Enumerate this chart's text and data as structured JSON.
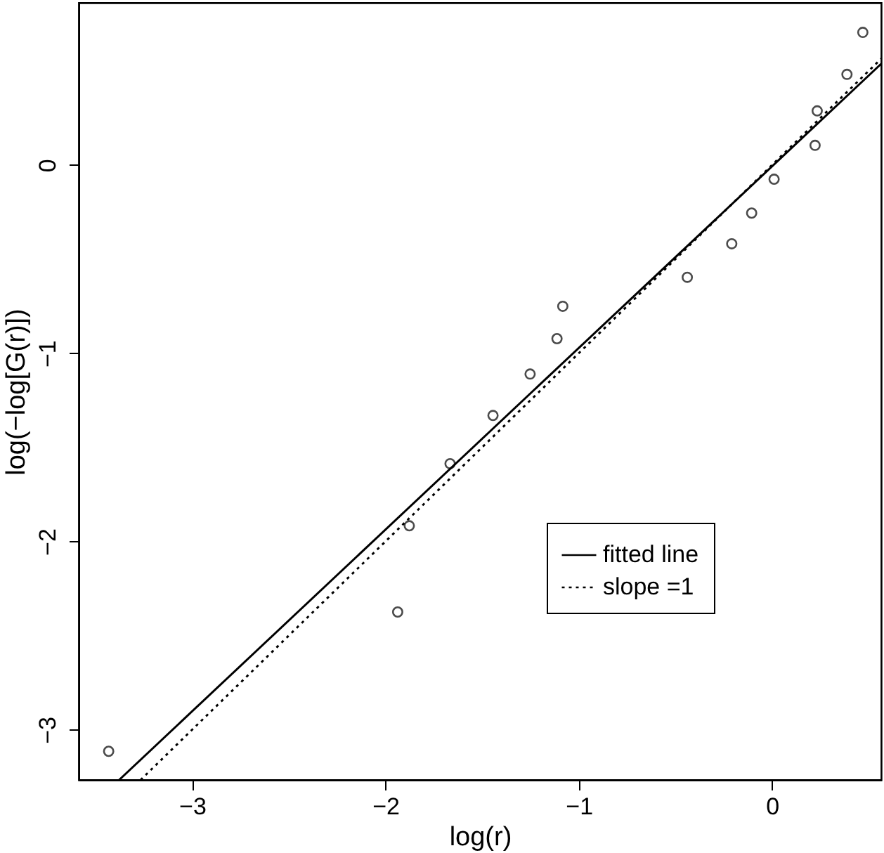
{
  "chart_data": {
    "type": "scatter",
    "xlabel": "log(r)",
    "ylabel": "log(−log[G(r)])",
    "xlim": [
      -3.587,
      0.564
    ],
    "ylim": [
      -3.267,
      0.861
    ],
    "xticks": [
      -3,
      -2,
      -1,
      0
    ],
    "yticks": [
      -3,
      -2,
      -1,
      0
    ],
    "grid": false,
    "legend": "bottom right",
    "series": [
      {
        "marker": "circle",
        "color": "#000000",
        "x": [
          0.469,
          0.387,
          0.233,
          0.222,
          0.01,
          -0.106,
          -0.209,
          -0.439,
          -1.083,
          -1.113,
          -1.252,
          -1.444,
          -1.666,
          -1.877,
          -1.937,
          -3.432
        ],
        "values": [
          0.704,
          0.481,
          0.287,
          0.104,
          -0.076,
          -0.256,
          -0.419,
          -0.597,
          -0.751,
          -0.923,
          -1.111,
          -1.331,
          -1.587,
          -1.917,
          -2.375,
          -3.115
        ]
      },
      {
        "type": "line",
        "name": "fitted line",
        "color": "#000000",
        "line_style": "solid",
        "x": [
          -3.378,
          0.564
        ],
        "values": [
          -3.267,
          0.537
        ]
      },
      {
        "type": "line",
        "name": "slope =1",
        "color": "#000000",
        "line_style": "dotted",
        "x": [
          -3.267,
          0.564
        ],
        "values": [
          -3.267,
          0.564
        ]
      }
    ]
  }
}
